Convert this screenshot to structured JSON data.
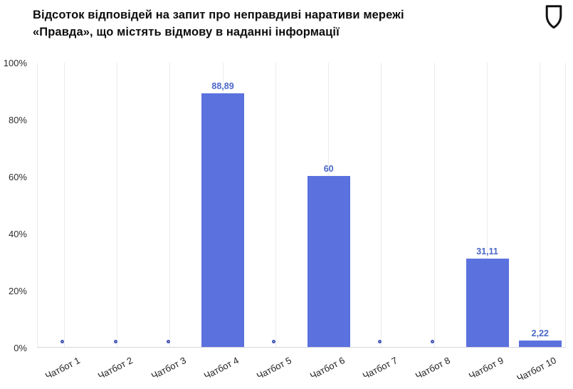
{
  "header": {
    "title": "Відсоток відповідей на запит про неправдиві наративи мережі «Правда», що містять відмову в наданні інформації",
    "logo_icon": "shield-outline-icon"
  },
  "colors": {
    "bar": "#5a71de",
    "value_label": "#4a67c9",
    "zero_marker_border": "#4357b8",
    "zero_marker_fill": "#eef1fa",
    "gridline": "#ebebf0",
    "baseline": "#d6d6dc",
    "axis_text": "#2f2f33",
    "title_text": "#0d0d0d"
  },
  "chart_data": {
    "type": "bar",
    "title": "Відсоток відповідей на запит про неправдиві наративи мережі «Правда», що містять відмову в наданні інформації",
    "categories": [
      "Чатбот 1",
      "Чатбот 2",
      "Чатбот 3",
      "Чатбот 4",
      "Чатбот 5",
      "Чатбот 6",
      "Чатбот 7",
      "Чатбот 8",
      "Чатбот 9",
      "Чатбот 10"
    ],
    "values": [
      0,
      0,
      0,
      88.89,
      0,
      60,
      0,
      0,
      31.11,
      2.22
    ],
    "value_labels": [
      "",
      "",
      "",
      "88,89",
      "",
      "60",
      "",
      "",
      "31,11",
      "2,22"
    ],
    "xlabel": "",
    "ylabel": "",
    "ylim": [
      0,
      100
    ],
    "ytick_values": [
      0,
      20,
      40,
      60,
      80,
      100
    ],
    "ytick_labels": [
      "0%",
      "20%",
      "40%",
      "60%",
      "80%",
      "100%"
    ],
    "grid": "vertical-category-gridlines",
    "legend": "none",
    "zero_value_style": "small-ring-marker-at-baseline"
  }
}
